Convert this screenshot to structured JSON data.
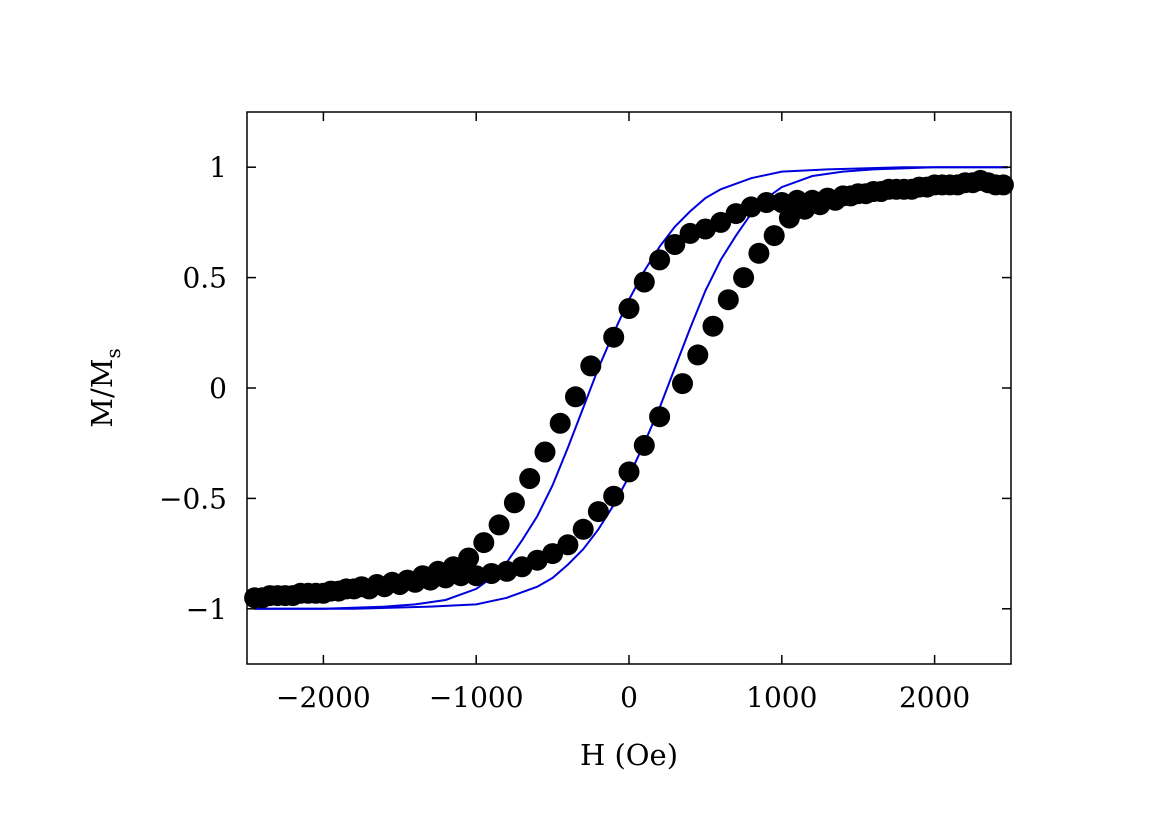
{
  "chart_data": {
    "type": "scatter",
    "xlabel": "H (Oe)",
    "ylabel_main": "M/M",
    "ylabel_sub": "s",
    "xlim": [
      -2500,
      2500
    ],
    "ylim": [
      -1.25,
      1.25
    ],
    "xticks": [
      -2000,
      -1000,
      0,
      1000,
      2000
    ],
    "xtick_labels": [
      "−2000",
      "−1000",
      "0",
      "1000",
      "2000"
    ],
    "yticks": [
      -1,
      -0.5,
      0,
      0.5,
      1
    ],
    "ytick_labels": [
      "−1",
      "−0.5",
      "0",
      "0.5",
      "1"
    ],
    "grid": false,
    "colors": {
      "points": "#000000",
      "fit": "#0000dd",
      "frame": "#000000"
    },
    "series": [
      {
        "kind": "points",
        "points": [
          [
            -2450,
            -0.95
          ],
          [
            -2400,
            -0.95
          ],
          [
            -2300,
            -0.94
          ],
          [
            -2200,
            -0.94
          ],
          [
            -2100,
            -0.93
          ],
          [
            -2000,
            -0.93
          ],
          [
            -1900,
            -0.92
          ],
          [
            -1800,
            -0.91
          ],
          [
            -1700,
            -0.91
          ],
          [
            -1600,
            -0.9
          ],
          [
            -1500,
            -0.89
          ],
          [
            -1400,
            -0.88
          ],
          [
            -1300,
            -0.87
          ],
          [
            -1200,
            -0.86
          ],
          [
            -1100,
            -0.85
          ],
          [
            -1000,
            -0.85
          ],
          [
            -900,
            -0.84
          ],
          [
            -800,
            -0.83
          ],
          [
            -700,
            -0.81
          ],
          [
            -600,
            -0.78
          ],
          [
            -500,
            -0.75
          ],
          [
            -400,
            -0.71
          ],
          [
            -300,
            -0.64
          ],
          [
            -200,
            -0.56
          ],
          [
            -100,
            -0.49
          ],
          [
            0,
            -0.38
          ],
          [
            100,
            -0.26
          ],
          [
            200,
            -0.13
          ],
          [
            350,
            0.02
          ],
          [
            450,
            0.15
          ],
          [
            550,
            0.28
          ],
          [
            650,
            0.4
          ],
          [
            750,
            0.5
          ],
          [
            850,
            0.61
          ],
          [
            950,
            0.69
          ],
          [
            1050,
            0.77
          ],
          [
            1150,
            0.81
          ],
          [
            1250,
            0.83
          ],
          [
            1350,
            0.85
          ],
          [
            1450,
            0.87
          ],
          [
            1550,
            0.88
          ],
          [
            1650,
            0.89
          ],
          [
            1750,
            0.9
          ],
          [
            1850,
            0.9
          ],
          [
            1950,
            0.91
          ],
          [
            2050,
            0.92
          ],
          [
            2150,
            0.92
          ],
          [
            2250,
            0.93
          ],
          [
            2300,
            0.94
          ],
          [
            2400,
            0.92
          ],
          [
            2450,
            0.92
          ],
          [
            2350,
            0.93
          ],
          [
            2200,
            0.93
          ],
          [
            2100,
            0.92
          ],
          [
            2000,
            0.92
          ],
          [
            1900,
            0.91
          ],
          [
            1800,
            0.9
          ],
          [
            1700,
            0.9
          ],
          [
            1600,
            0.89
          ],
          [
            1500,
            0.88
          ],
          [
            1400,
            0.87
          ],
          [
            1300,
            0.86
          ],
          [
            1200,
            0.85
          ],
          [
            1100,
            0.85
          ],
          [
            1000,
            0.84
          ],
          [
            900,
            0.84
          ],
          [
            800,
            0.82
          ],
          [
            700,
            0.79
          ],
          [
            600,
            0.75
          ],
          [
            500,
            0.72
          ],
          [
            400,
            0.7
          ],
          [
            300,
            0.65
          ],
          [
            200,
            0.58
          ],
          [
            100,
            0.48
          ],
          [
            0,
            0.36
          ],
          [
            -100,
            0.23
          ],
          [
            -250,
            0.1
          ],
          [
            -350,
            -0.04
          ],
          [
            -450,
            -0.16
          ],
          [
            -550,
            -0.29
          ],
          [
            -650,
            -0.41
          ],
          [
            -750,
            -0.52
          ],
          [
            -850,
            -0.62
          ],
          [
            -950,
            -0.7
          ],
          [
            -1050,
            -0.77
          ],
          [
            -1150,
            -0.81
          ],
          [
            -1250,
            -0.83
          ],
          [
            -1350,
            -0.85
          ],
          [
            -1450,
            -0.87
          ],
          [
            -1550,
            -0.88
          ],
          [
            -1650,
            -0.89
          ],
          [
            -1750,
            -0.9
          ],
          [
            -1850,
            -0.91
          ],
          [
            -1950,
            -0.92
          ],
          [
            -2050,
            -0.93
          ],
          [
            -2150,
            -0.93
          ],
          [
            -2250,
            -0.94
          ],
          [
            -2350,
            -0.94
          ]
        ]
      },
      {
        "kind": "line",
        "branch": "upper",
        "points": [
          [
            -2450,
            -1.0
          ],
          [
            -2000,
            -1.0
          ],
          [
            -1600,
            -0.99
          ],
          [
            -1400,
            -0.98
          ],
          [
            -1200,
            -0.96
          ],
          [
            -1000,
            -0.91
          ],
          [
            -900,
            -0.86
          ],
          [
            -800,
            -0.79
          ],
          [
            -700,
            -0.69
          ],
          [
            -600,
            -0.58
          ],
          [
            -500,
            -0.44
          ],
          [
            -400,
            -0.27
          ],
          [
            -300,
            -0.09
          ],
          [
            -200,
            0.09
          ],
          [
            -100,
            0.25
          ],
          [
            0,
            0.4
          ],
          [
            100,
            0.53
          ],
          [
            200,
            0.64
          ],
          [
            300,
            0.73
          ],
          [
            400,
            0.8
          ],
          [
            500,
            0.86
          ],
          [
            600,
            0.9
          ],
          [
            800,
            0.95
          ],
          [
            1000,
            0.98
          ],
          [
            1300,
            0.99
          ],
          [
            1800,
            1.0
          ],
          [
            2480,
            1.0
          ]
        ]
      },
      {
        "kind": "line",
        "branch": "lower",
        "points": [
          [
            -2450,
            -1.0
          ],
          [
            -1800,
            -1.0
          ],
          [
            -1300,
            -0.99
          ],
          [
            -1000,
            -0.98
          ],
          [
            -800,
            -0.95
          ],
          [
            -600,
            -0.9
          ],
          [
            -500,
            -0.86
          ],
          [
            -400,
            -0.8
          ],
          [
            -300,
            -0.73
          ],
          [
            -200,
            -0.64
          ],
          [
            -100,
            -0.53
          ],
          [
            0,
            -0.4
          ],
          [
            100,
            -0.25
          ],
          [
            200,
            -0.09
          ],
          [
            300,
            0.09
          ],
          [
            400,
            0.27
          ],
          [
            500,
            0.44
          ],
          [
            600,
            0.58
          ],
          [
            700,
            0.69
          ],
          [
            800,
            0.79
          ],
          [
            900,
            0.86
          ],
          [
            1000,
            0.91
          ],
          [
            1200,
            0.96
          ],
          [
            1400,
            0.98
          ],
          [
            1600,
            0.99
          ],
          [
            2000,
            1.0
          ],
          [
            2480,
            1.0
          ]
        ]
      }
    ]
  }
}
